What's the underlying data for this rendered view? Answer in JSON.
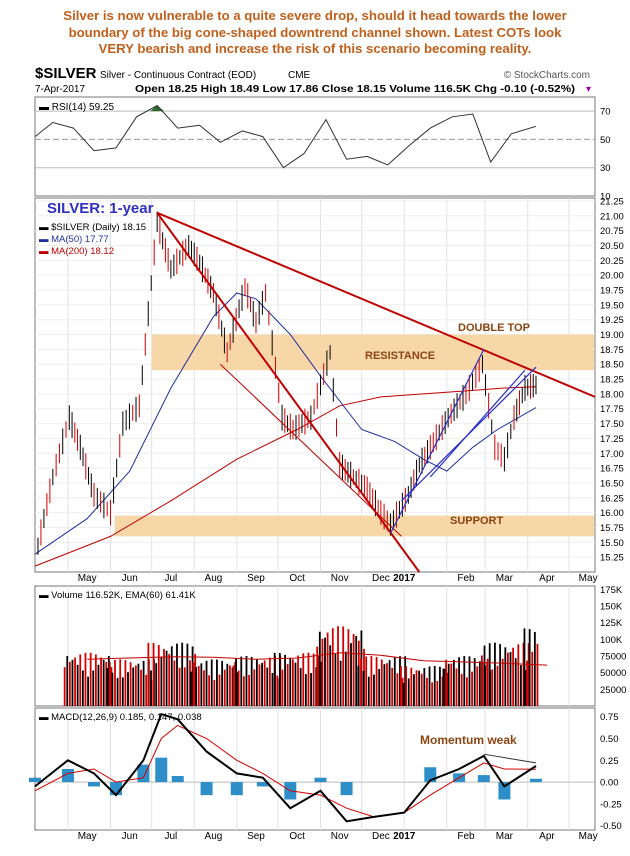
{
  "headline": [
    "Silver is now vulnerable to a quite severe drop, should it head towards the lower",
    "boundary of the big cone-shaped downtrend channel shown. Latest COTs look",
    "VERY bearish and increase the risk of this scenario becoming reality."
  ],
  "header": {
    "symbol": "$SILVER",
    "name": "Silver - Continuous Contract (EOD)",
    "exchange": "CME",
    "source": "© StockCharts.com",
    "date": "7-Apr-2017",
    "quote": "Open 18.25  High 18.49  Low 17.86  Close 18.15  Volume 116.5K  Chg -0.10 (-0.52%)",
    "chg_marker": "▾"
  },
  "colors": {
    "price": "#000000",
    "down_bar": "#d40000",
    "ma50": "#2030a0",
    "ma200": "#c00000",
    "trendline": "#c00000",
    "channel": "#2830c8",
    "band": "#f7d7a8",
    "annotation": "#8b4513",
    "rsi_fill": "#2f6b2f",
    "macd_hist": "#2e8fc8",
    "volume_up": "#000000",
    "volume_down": "#d40000",
    "title_blue": "#3030c0"
  },
  "annotations": {
    "chart_title": "SILVER: 1-year",
    "resistance": "RESISTANCE",
    "support": "SUPPORT",
    "double_top": "DOUBLE TOP",
    "momentum": "Momentum weak"
  },
  "chart_data": [
    {
      "type": "line",
      "panel": "RSI",
      "label": "RSI(14) 59.25",
      "ylim": [
        10,
        80
      ],
      "yticks": [
        10,
        30,
        50,
        70
      ],
      "reference_lines": [
        30,
        50,
        70
      ],
      "x": [
        "2016-04-07",
        "2016-04-20",
        "2016-05-05",
        "2016-05-20",
        "2016-06-05",
        "2016-06-20",
        "2016-07-05",
        "2016-07-20",
        "2016-08-05",
        "2016-08-20",
        "2016-09-05",
        "2016-09-20",
        "2016-10-05",
        "2016-10-20",
        "2016-11-05",
        "2016-11-20",
        "2016-12-05",
        "2016-12-20",
        "2017-01-05",
        "2017-01-20",
        "2017-02-05",
        "2017-02-20",
        "2017-03-05",
        "2017-03-20",
        "2017-04-07"
      ],
      "y": [
        52,
        62,
        58,
        42,
        44,
        66,
        74,
        58,
        60,
        48,
        56,
        52,
        30,
        40,
        64,
        36,
        38,
        32,
        46,
        58,
        66,
        68,
        34,
        54,
        59.25
      ]
    },
    {
      "type": "line",
      "panel": "price",
      "label": "$SILVER (Daily) 18.15",
      "xlabel": "",
      "ylabel": "",
      "ylim": [
        15.0,
        21.3
      ],
      "yticks": [
        15.25,
        15.5,
        15.75,
        16.0,
        16.25,
        16.5,
        16.75,
        17.0,
        17.25,
        17.5,
        17.75,
        18.0,
        18.25,
        18.5,
        18.75,
        19.0,
        19.25,
        19.5,
        19.75,
        20.0,
        20.25,
        20.5,
        20.75,
        21.0,
        21.25
      ],
      "xtick_labels": [
        "May",
        "Jun",
        "Jul",
        "Aug",
        "Sep",
        "Oct",
        "Nov",
        "Dec",
        "2017",
        "Feb",
        "Mar",
        "Apr",
        "May"
      ],
      "series": [
        {
          "name": "$SILVER (Daily) 18.15",
          "x": [
            "2016-04-07",
            "2016-04-20",
            "2016-05-02",
            "2016-05-10",
            "2016-05-20",
            "2016-06-01",
            "2016-06-10",
            "2016-06-22",
            "2016-07-05",
            "2016-07-15",
            "2016-07-28",
            "2016-08-05",
            "2016-08-15",
            "2016-08-25",
            "2016-09-07",
            "2016-09-15",
            "2016-09-22",
            "2016-10-04",
            "2016-10-12",
            "2016-10-25",
            "2016-11-08",
            "2016-11-15",
            "2016-11-25",
            "2016-12-05",
            "2016-12-15",
            "2016-12-22",
            "2017-01-04",
            "2017-01-12",
            "2017-01-20",
            "2017-02-02",
            "2017-02-15",
            "2017-02-27",
            "2017-03-08",
            "2017-03-15",
            "2017-03-22",
            "2017-03-30",
            "2017-04-07"
          ],
          "y": [
            15.2,
            16.6,
            17.6,
            17.1,
            16.3,
            16.0,
            17.5,
            17.8,
            20.9,
            20.1,
            20.5,
            20.2,
            19.7,
            18.7,
            19.8,
            19.2,
            19.7,
            17.6,
            17.4,
            17.6,
            18.7,
            16.8,
            16.6,
            16.4,
            16.0,
            15.8,
            16.3,
            16.8,
            17.1,
            17.6,
            18.0,
            18.5,
            17.1,
            16.9,
            17.6,
            18.1,
            18.15
          ]
        },
        {
          "name": "MA(50) 17.77",
          "x": [
            "2016-04-07",
            "2016-05-15",
            "2016-06-15",
            "2016-07-15",
            "2016-08-15",
            "2016-09-01",
            "2016-09-15",
            "2016-10-10",
            "2016-11-01",
            "2016-12-01",
            "2016-12-25",
            "2017-01-15",
            "2017-02-01",
            "2017-02-20",
            "2017-03-10",
            "2017-04-07"
          ],
          "y": [
            15.3,
            15.9,
            16.7,
            18.1,
            19.3,
            19.7,
            19.6,
            19.0,
            18.3,
            17.4,
            17.2,
            16.9,
            16.7,
            17.1,
            17.4,
            17.77
          ]
        },
        {
          "name": "MA(200) 18.12",
          "x": [
            "2016-04-07",
            "2016-06-01",
            "2016-07-15",
            "2016-09-01",
            "2016-10-15",
            "2016-11-15",
            "2016-12-15",
            "2017-01-15",
            "2017-02-15",
            "2017-03-15",
            "2017-04-07"
          ],
          "y": [
            15.1,
            15.6,
            16.2,
            16.9,
            17.4,
            17.8,
            17.95,
            18.0,
            18.05,
            18.1,
            18.12
          ]
        }
      ],
      "bands": [
        {
          "name": "RESISTANCE",
          "from": 18.4,
          "to": 19.0
        },
        {
          "name": "SUPPORT",
          "from": 15.6,
          "to": 15.95
        }
      ]
    },
    {
      "type": "bar",
      "panel": "volume",
      "label": "Volume 116.52K, EMA(60) 61.41K",
      "ylim": [
        0,
        180000
      ],
      "yticks": [
        25000,
        50000,
        75000,
        100000,
        125000,
        150000,
        175000
      ],
      "ytick_labels": [
        "25000",
        "50000",
        "75000",
        "100K",
        "125K",
        "150K",
        "175K"
      ],
      "x": [
        "2016-05",
        "2016-06",
        "2016-07",
        "2016-08",
        "2016-09",
        "2016-10",
        "2016-11",
        "2016-12",
        "2017-01",
        "2017-02",
        "2017-03",
        "2017-04"
      ],
      "values": [
        80000,
        70000,
        95000,
        70000,
        75000,
        80000,
        120000,
        75000,
        60000,
        75000,
        95000,
        116520
      ],
      "series": [
        {
          "name": "EMA(60)",
          "values": [
            70000,
            72000,
            74000,
            73000,
            70000,
            72000,
            80000,
            76000,
            68000,
            66000,
            64000,
            61410
          ]
        }
      ]
    },
    {
      "type": "line",
      "panel": "MACD",
      "label": "MACD(12,26,9) 0.185, 0.147, 0.038",
      "ylim": [
        -0.55,
        0.85
      ],
      "yticks": [
        -0.5,
        -0.25,
        0.0,
        0.25,
        0.5,
        0.75
      ],
      "xtick_labels": [
        "May",
        "Jun",
        "Jul",
        "Aug",
        "Sep",
        "Oct",
        "Nov",
        "Dec",
        "2017",
        "Feb",
        "Mar",
        "Apr",
        "May"
      ],
      "x": [
        "2016-04-07",
        "2016-05-01",
        "2016-05-20",
        "2016-06-05",
        "2016-06-25",
        "2016-07-08",
        "2016-07-20",
        "2016-08-10",
        "2016-09-01",
        "2016-09-20",
        "2016-10-10",
        "2016-11-01",
        "2016-11-20",
        "2016-12-10",
        "2017-01-01",
        "2017-01-20",
        "2017-02-10",
        "2017-02-28",
        "2017-03-15",
        "2017-04-07"
      ],
      "series": [
        {
          "name": "MACD",
          "values": [
            -0.05,
            0.25,
            0.1,
            -0.15,
            0.25,
            0.78,
            0.72,
            0.35,
            0.1,
            0.05,
            -0.3,
            -0.1,
            -0.45,
            -0.4,
            -0.35,
            0.02,
            0.15,
            0.3,
            -0.05,
            0.185
          ]
        },
        {
          "name": "Signal",
          "values": [
            -0.1,
            0.1,
            0.15,
            0.0,
            0.05,
            0.5,
            0.65,
            0.5,
            0.25,
            0.1,
            -0.1,
            -0.15,
            -0.3,
            -0.4,
            -0.35,
            -0.15,
            0.05,
            0.22,
            0.15,
            0.147
          ]
        }
      ],
      "histogram_last": 0.038
    }
  ]
}
